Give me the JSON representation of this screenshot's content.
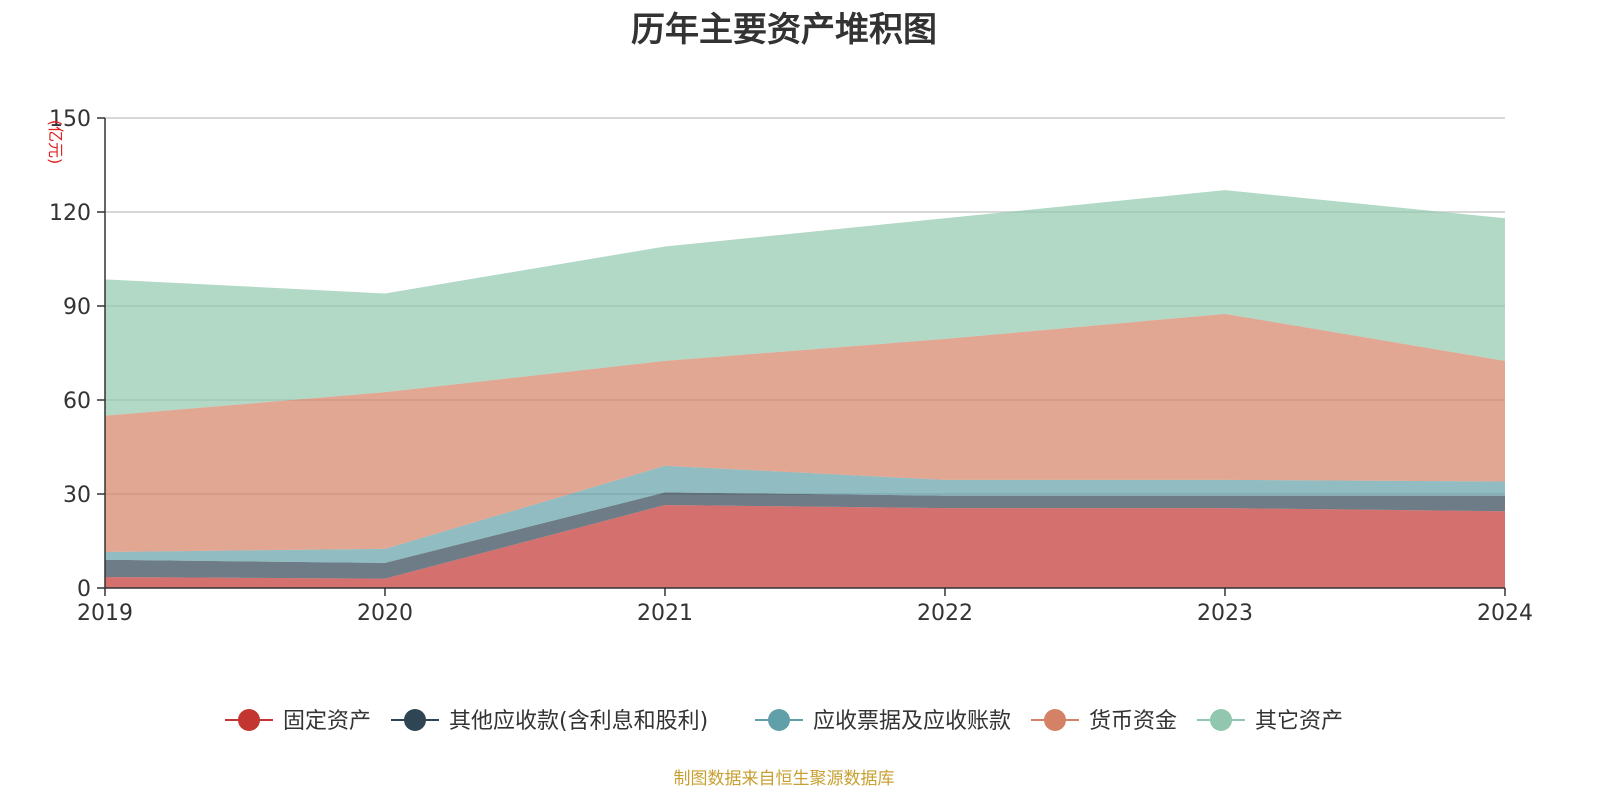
{
  "chart_data": {
    "type": "area",
    "stacked": true,
    "title": "历年主要资产堆积图",
    "unit_label": "(亿元)",
    "source": "制图数据来自恒生聚源数据库",
    "x": [
      "2019",
      "2020",
      "2021",
      "2022",
      "2023",
      "2024"
    ],
    "ylim": [
      0,
      150
    ],
    "yticks": [
      0,
      30,
      60,
      90,
      120,
      150
    ],
    "grid": true,
    "legend_position": "bottom",
    "series": [
      {
        "name": "固定资产",
        "color": "#c23531",
        "values": [
          3.5,
          3,
          26.5,
          25.5,
          25.5,
          24.5
        ]
      },
      {
        "name": "其他应收款(含利息和股利)",
        "color": "#2f4554",
        "values": [
          5.5,
          5,
          4,
          4,
          4,
          5
        ]
      },
      {
        "name": "应收票据及应收账款",
        "color": "#61a0a8",
        "values": [
          2.5,
          4.5,
          8.5,
          5,
          5,
          4.5
        ]
      },
      {
        "name": "货币资金",
        "color": "#d48265",
        "values": [
          43.5,
          50,
          33.5,
          45,
          53,
          38.5
        ]
      },
      {
        "name": "其它资产",
        "color": "#91c7ae",
        "values": [
          43.5,
          31.5,
          36.5,
          38.5,
          39.5,
          45.5
        ]
      }
    ]
  }
}
